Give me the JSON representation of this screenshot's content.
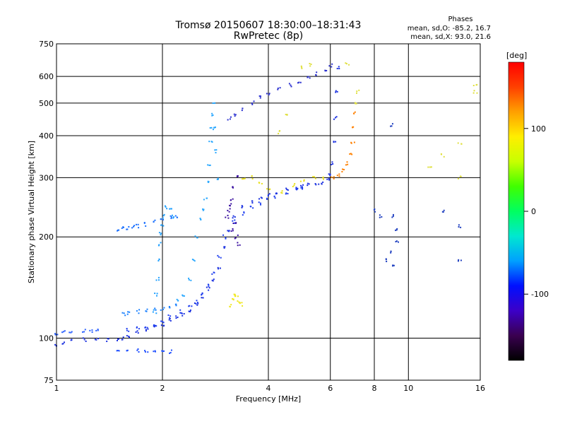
{
  "chart_data": {
    "type": "scatter",
    "title": "Tromsø 20150607 18:30:00–18:31:43",
    "subtitle": "RwPretec (8p)",
    "xlabel": "Frequency [MHz]",
    "ylabel": "Stationary phase Virtual Height [km]",
    "x_scale": "log",
    "y_scale": "log",
    "xlim": [
      1,
      16
    ],
    "ylim": [
      75,
      750
    ],
    "grid": true,
    "x_ticks": [
      1,
      2,
      4,
      6,
      8,
      10,
      16
    ],
    "x_tick_labels": [
      "1",
      "2",
      "4",
      "6",
      "8",
      "10",
      "16"
    ],
    "y_ticks": [
      75,
      100,
      200,
      300,
      400,
      500,
      600,
      750
    ],
    "y_tick_labels": [
      "75",
      "100",
      "200",
      "300",
      "400",
      "500",
      "600",
      "750"
    ],
    "phase_info": {
      "heading": "Phases",
      "line_o": "mean, sd,O: -85.2, 16.7",
      "line_x": "mean, sd,X:  93.0, 21.6"
    },
    "colorbar": {
      "label": "[deg]",
      "ticks": [
        -100,
        0,
        100
      ],
      "tick_labels": [
        "-100",
        "0",
        "100"
      ],
      "range": [
        -180,
        180
      ],
      "colors": [
        "#000000",
        "#3a0050",
        "#3c00c8",
        "#0010ff",
        "#00a0ff",
        "#00e8d0",
        "#00ff60",
        "#40ff00",
        "#c8ff00",
        "#ffee00",
        "#ffa000",
        "#ff4000",
        "#ff0000"
      ]
    },
    "series": [
      {
        "values": [
          [
            1.0,
            95
          ],
          [
            1.05,
            97
          ],
          [
            1.1,
            98
          ],
          [
            1.2,
            99
          ],
          [
            1.3,
            99
          ],
          [
            1.4,
            99
          ],
          [
            1.5,
            99
          ],
          [
            1.55,
            100
          ],
          [
            1.6,
            101
          ],
          [
            1.7,
            104
          ],
          [
            1.8,
            106
          ],
          [
            1.9,
            108
          ],
          [
            2.0,
            110
          ],
          [
            2.1,
            113
          ],
          [
            2.2,
            116
          ],
          [
            2.3,
            118
          ],
          [
            2.4,
            121
          ],
          [
            2.5,
            126
          ],
          [
            2.6,
            133
          ],
          [
            2.7,
            140
          ],
          [
            2.8,
            148
          ],
          [
            2.9,
            160
          ],
          [
            3.0,
            185
          ],
          [
            3.1,
            210
          ],
          [
            3.2,
            230
          ],
          [
            3.4,
            245
          ],
          [
            3.6,
            255
          ],
          [
            3.8,
            262
          ],
          [
            4.0,
            268
          ],
          [
            4.2,
            272
          ],
          [
            4.5,
            276
          ],
          [
            4.8,
            280
          ],
          [
            5.0,
            283
          ],
          [
            5.2,
            285
          ],
          [
            5.5,
            287
          ],
          [
            5.7,
            290
          ],
          [
            5.9,
            296
          ],
          [
            6.0,
            305
          ],
          [
            6.1,
            330
          ],
          [
            6.15,
            380
          ],
          [
            6.2,
            450
          ],
          [
            6.25,
            540
          ],
          [
            6.3,
            640
          ]
        ],
        "color": "#1a30e0"
      },
      {
        "values": [
          [
            1.6,
            106
          ],
          [
            1.7,
            107
          ],
          [
            1.8,
            108
          ],
          [
            1.9,
            109
          ],
          [
            2.0,
            112
          ],
          [
            2.1,
            116
          ],
          [
            2.25,
            120
          ],
          [
            2.4,
            124
          ],
          [
            2.5,
            128
          ],
          [
            2.6,
            135
          ],
          [
            2.7,
            143
          ],
          [
            2.8,
            155
          ],
          [
            2.9,
            175
          ],
          [
            3.0,
            200
          ],
          [
            3.2,
            222
          ],
          [
            3.4,
            235
          ],
          [
            3.6,
            245
          ],
          [
            3.8,
            252
          ],
          [
            4.0,
            258
          ],
          [
            4.2,
            263
          ],
          [
            4.5,
            270
          ],
          [
            4.8,
            276
          ],
          [
            5.0,
            280
          ]
        ],
        "color": "#2040f0"
      },
      {
        "values": [
          [
            1.0,
            103
          ],
          [
            1.05,
            104
          ],
          [
            1.1,
            104
          ],
          [
            1.2,
            105
          ],
          [
            1.25,
            105
          ],
          [
            1.3,
            106
          ]
        ],
        "color": "#2a60ff"
      },
      {
        "values": [
          [
            1.5,
            210
          ],
          [
            1.55,
            212
          ],
          [
            1.6,
            213
          ],
          [
            1.65,
            214
          ],
          [
            1.7,
            215
          ],
          [
            1.8,
            218
          ],
          [
            1.9,
            222
          ],
          [
            2.0,
            226
          ],
          [
            2.1,
            228
          ],
          [
            2.2,
            230
          ]
        ],
        "color": "#1a70ff"
      },
      {
        "values": [
          [
            1.55,
            118
          ],
          [
            1.6,
            119
          ],
          [
            1.7,
            120
          ],
          [
            1.8,
            121
          ],
          [
            1.9,
            122
          ],
          [
            2.0,
            122
          ],
          [
            2.1,
            123
          ],
          [
            2.2,
            125
          ]
        ],
        "color": "#1a80ff"
      },
      {
        "values": [
          [
            1.5,
            91
          ],
          [
            1.6,
            92
          ],
          [
            1.7,
            92
          ],
          [
            1.8,
            91
          ],
          [
            1.9,
            92
          ],
          [
            2.0,
            92
          ],
          [
            2.1,
            91
          ]
        ],
        "color": "#2050ff"
      },
      {
        "values": [
          [
            1.9,
            120
          ],
          [
            1.92,
            135
          ],
          [
            1.94,
            150
          ],
          [
            1.95,
            170
          ],
          [
            1.97,
            190
          ],
          [
            1.98,
            205
          ],
          [
            2.0,
            215
          ],
          [
            2.02,
            230
          ],
          [
            2.05,
            245
          ],
          [
            2.1,
            240
          ],
          [
            2.15,
            230
          ]
        ],
        "color": "#20a0ff"
      },
      {
        "values": [
          [
            2.2,
            130
          ],
          [
            2.3,
            135
          ],
          [
            2.4,
            150
          ],
          [
            2.45,
            170
          ],
          [
            2.5,
            200
          ],
          [
            2.55,
            225
          ],
          [
            2.6,
            240
          ],
          [
            2.65,
            260
          ],
          [
            2.7,
            290
          ],
          [
            2.72,
            330
          ],
          [
            2.74,
            380
          ],
          [
            2.76,
            420
          ],
          [
            2.78,
            460
          ],
          [
            2.8,
            500
          ],
          [
            2.82,
            420
          ],
          [
            2.85,
            360
          ],
          [
            2.88,
            300
          ]
        ],
        "color": "#2aa8ff"
      },
      {
        "values": [
          [
            3.1,
            450
          ],
          [
            3.2,
            460
          ],
          [
            3.4,
            480
          ],
          [
            3.6,
            500
          ],
          [
            3.8,
            520
          ],
          [
            4.0,
            535
          ],
          [
            4.3,
            550
          ],
          [
            4.6,
            565
          ],
          [
            4.9,
            580
          ],
          [
            5.2,
            595
          ],
          [
            5.5,
            610
          ],
          [
            5.8,
            630
          ],
          [
            6.0,
            645
          ]
        ],
        "color": "#2a30d0"
      },
      {
        "values": [
          [
            3.1,
            240
          ],
          [
            3.15,
            260
          ],
          [
            3.2,
            280
          ],
          [
            3.25,
            300
          ],
          [
            3.1,
            250
          ],
          [
            3.2,
            220
          ],
          [
            3.25,
            200
          ],
          [
            3.3,
            190
          ],
          [
            3.15,
            210
          ],
          [
            3.05,
            230
          ]
        ],
        "color": "#3a10a0"
      },
      {
        "values": [
          [
            3.4,
            298
          ],
          [
            3.6,
            300
          ],
          [
            3.8,
            290
          ],
          [
            4.0,
            275
          ],
          [
            4.4,
            272
          ],
          [
            4.7,
            285
          ],
          [
            5.0,
            295
          ],
          [
            5.4,
            300
          ],
          [
            5.7,
            298
          ]
        ],
        "color": "#e8e020"
      },
      {
        "values": [
          [
            6.1,
            300
          ],
          [
            6.3,
            305
          ],
          [
            6.5,
            315
          ],
          [
            6.7,
            330
          ],
          [
            6.85,
            350
          ],
          [
            6.95,
            380
          ],
          [
            7.0,
            420
          ],
          [
            7.05,
            470
          ]
        ],
        "color": "#ff8000"
      },
      {
        "values": [
          [
            3.1,
            125
          ],
          [
            3.15,
            130
          ],
          [
            3.2,
            135
          ],
          [
            3.25,
            132
          ],
          [
            3.3,
            128
          ],
          [
            3.35,
            126
          ]
        ],
        "color": "#f0e820"
      },
      {
        "values": [
          [
            8.0,
            240
          ],
          [
            8.3,
            230
          ],
          [
            9.0,
            230
          ],
          [
            9.2,
            210
          ],
          [
            9.3,
            195
          ],
          [
            8.6,
            170
          ],
          [
            9.0,
            180
          ],
          [
            9.0,
            165
          ],
          [
            12.5,
            240
          ],
          [
            14.0,
            215
          ],
          [
            14.0,
            170
          ],
          [
            9.0,
            430
          ]
        ],
        "color": "#2040c0"
      },
      {
        "values": [
          [
            5.0,
            640
          ],
          [
            5.3,
            650
          ],
          [
            6.7,
            650
          ],
          [
            7.1,
            500
          ],
          [
            7.2,
            540
          ],
          [
            11.5,
            320
          ],
          [
            12.5,
            350
          ],
          [
            14.0,
            380
          ],
          [
            14.0,
            300
          ],
          [
            15.5,
            540
          ],
          [
            15.5,
            560
          ],
          [
            4.3,
            410
          ],
          [
            4.5,
            460
          ]
        ],
        "color": "#e0e040"
      }
    ]
  }
}
